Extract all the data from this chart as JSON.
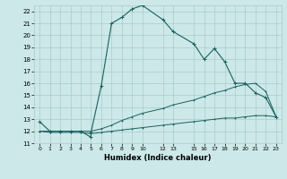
{
  "xlabel": "Humidex (Indice chaleur)",
  "bg_color": "#cce8e8",
  "grid_color": "#aacccc",
  "line_color": "#1a6060",
  "ylim": [
    11,
    22.5
  ],
  "xlim": [
    -0.5,
    23.5
  ],
  "yticks": [
    11,
    12,
    13,
    14,
    15,
    16,
    17,
    18,
    19,
    20,
    21,
    22
  ],
  "xtick_positions": [
    0,
    1,
    2,
    3,
    4,
    5,
    6,
    7,
    8,
    9,
    10,
    12,
    13,
    15,
    16,
    17,
    18,
    19,
    20,
    21,
    22,
    23
  ],
  "xtick_labels": [
    "0",
    "1",
    "2",
    "3",
    "4",
    "5",
    "6",
    "7",
    "8",
    "9",
    "10",
    "12",
    "13",
    "15",
    "16",
    "17",
    "18",
    "19",
    "20",
    "21",
    "22",
    "23"
  ],
  "curve1_x": [
    0,
    1,
    2,
    3,
    4,
    5,
    5,
    6,
    7,
    8,
    9,
    10,
    12,
    13,
    15,
    16,
    17,
    18,
    19,
    20,
    21,
    22,
    23
  ],
  "curve1_y": [
    12.8,
    12.0,
    12.0,
    12.0,
    12.0,
    11.5,
    11.9,
    15.8,
    21.0,
    21.5,
    22.2,
    22.5,
    21.3,
    20.3,
    19.3,
    18.0,
    18.9,
    17.8,
    16.0,
    16.0,
    15.2,
    14.8,
    13.2
  ],
  "curve2_x": [
    0,
    1,
    2,
    3,
    4,
    5,
    6,
    7,
    8,
    9,
    10,
    12,
    13,
    15,
    16,
    17,
    18,
    19,
    20,
    21,
    22,
    23
  ],
  "curve2_y": [
    12.0,
    12.0,
    12.0,
    12.0,
    12.0,
    12.0,
    12.2,
    12.5,
    12.9,
    13.2,
    13.5,
    13.9,
    14.2,
    14.6,
    14.9,
    15.2,
    15.4,
    15.7,
    15.9,
    16.0,
    15.3,
    13.2
  ],
  "curve3_x": [
    0,
    1,
    2,
    3,
    4,
    5,
    6,
    7,
    8,
    9,
    10,
    12,
    13,
    15,
    16,
    17,
    18,
    19,
    20,
    21,
    22,
    23
  ],
  "curve3_y": [
    12.0,
    11.9,
    11.9,
    11.9,
    11.9,
    11.8,
    11.9,
    12.0,
    12.1,
    12.2,
    12.3,
    12.5,
    12.6,
    12.8,
    12.9,
    13.0,
    13.1,
    13.1,
    13.2,
    13.3,
    13.3,
    13.2
  ]
}
